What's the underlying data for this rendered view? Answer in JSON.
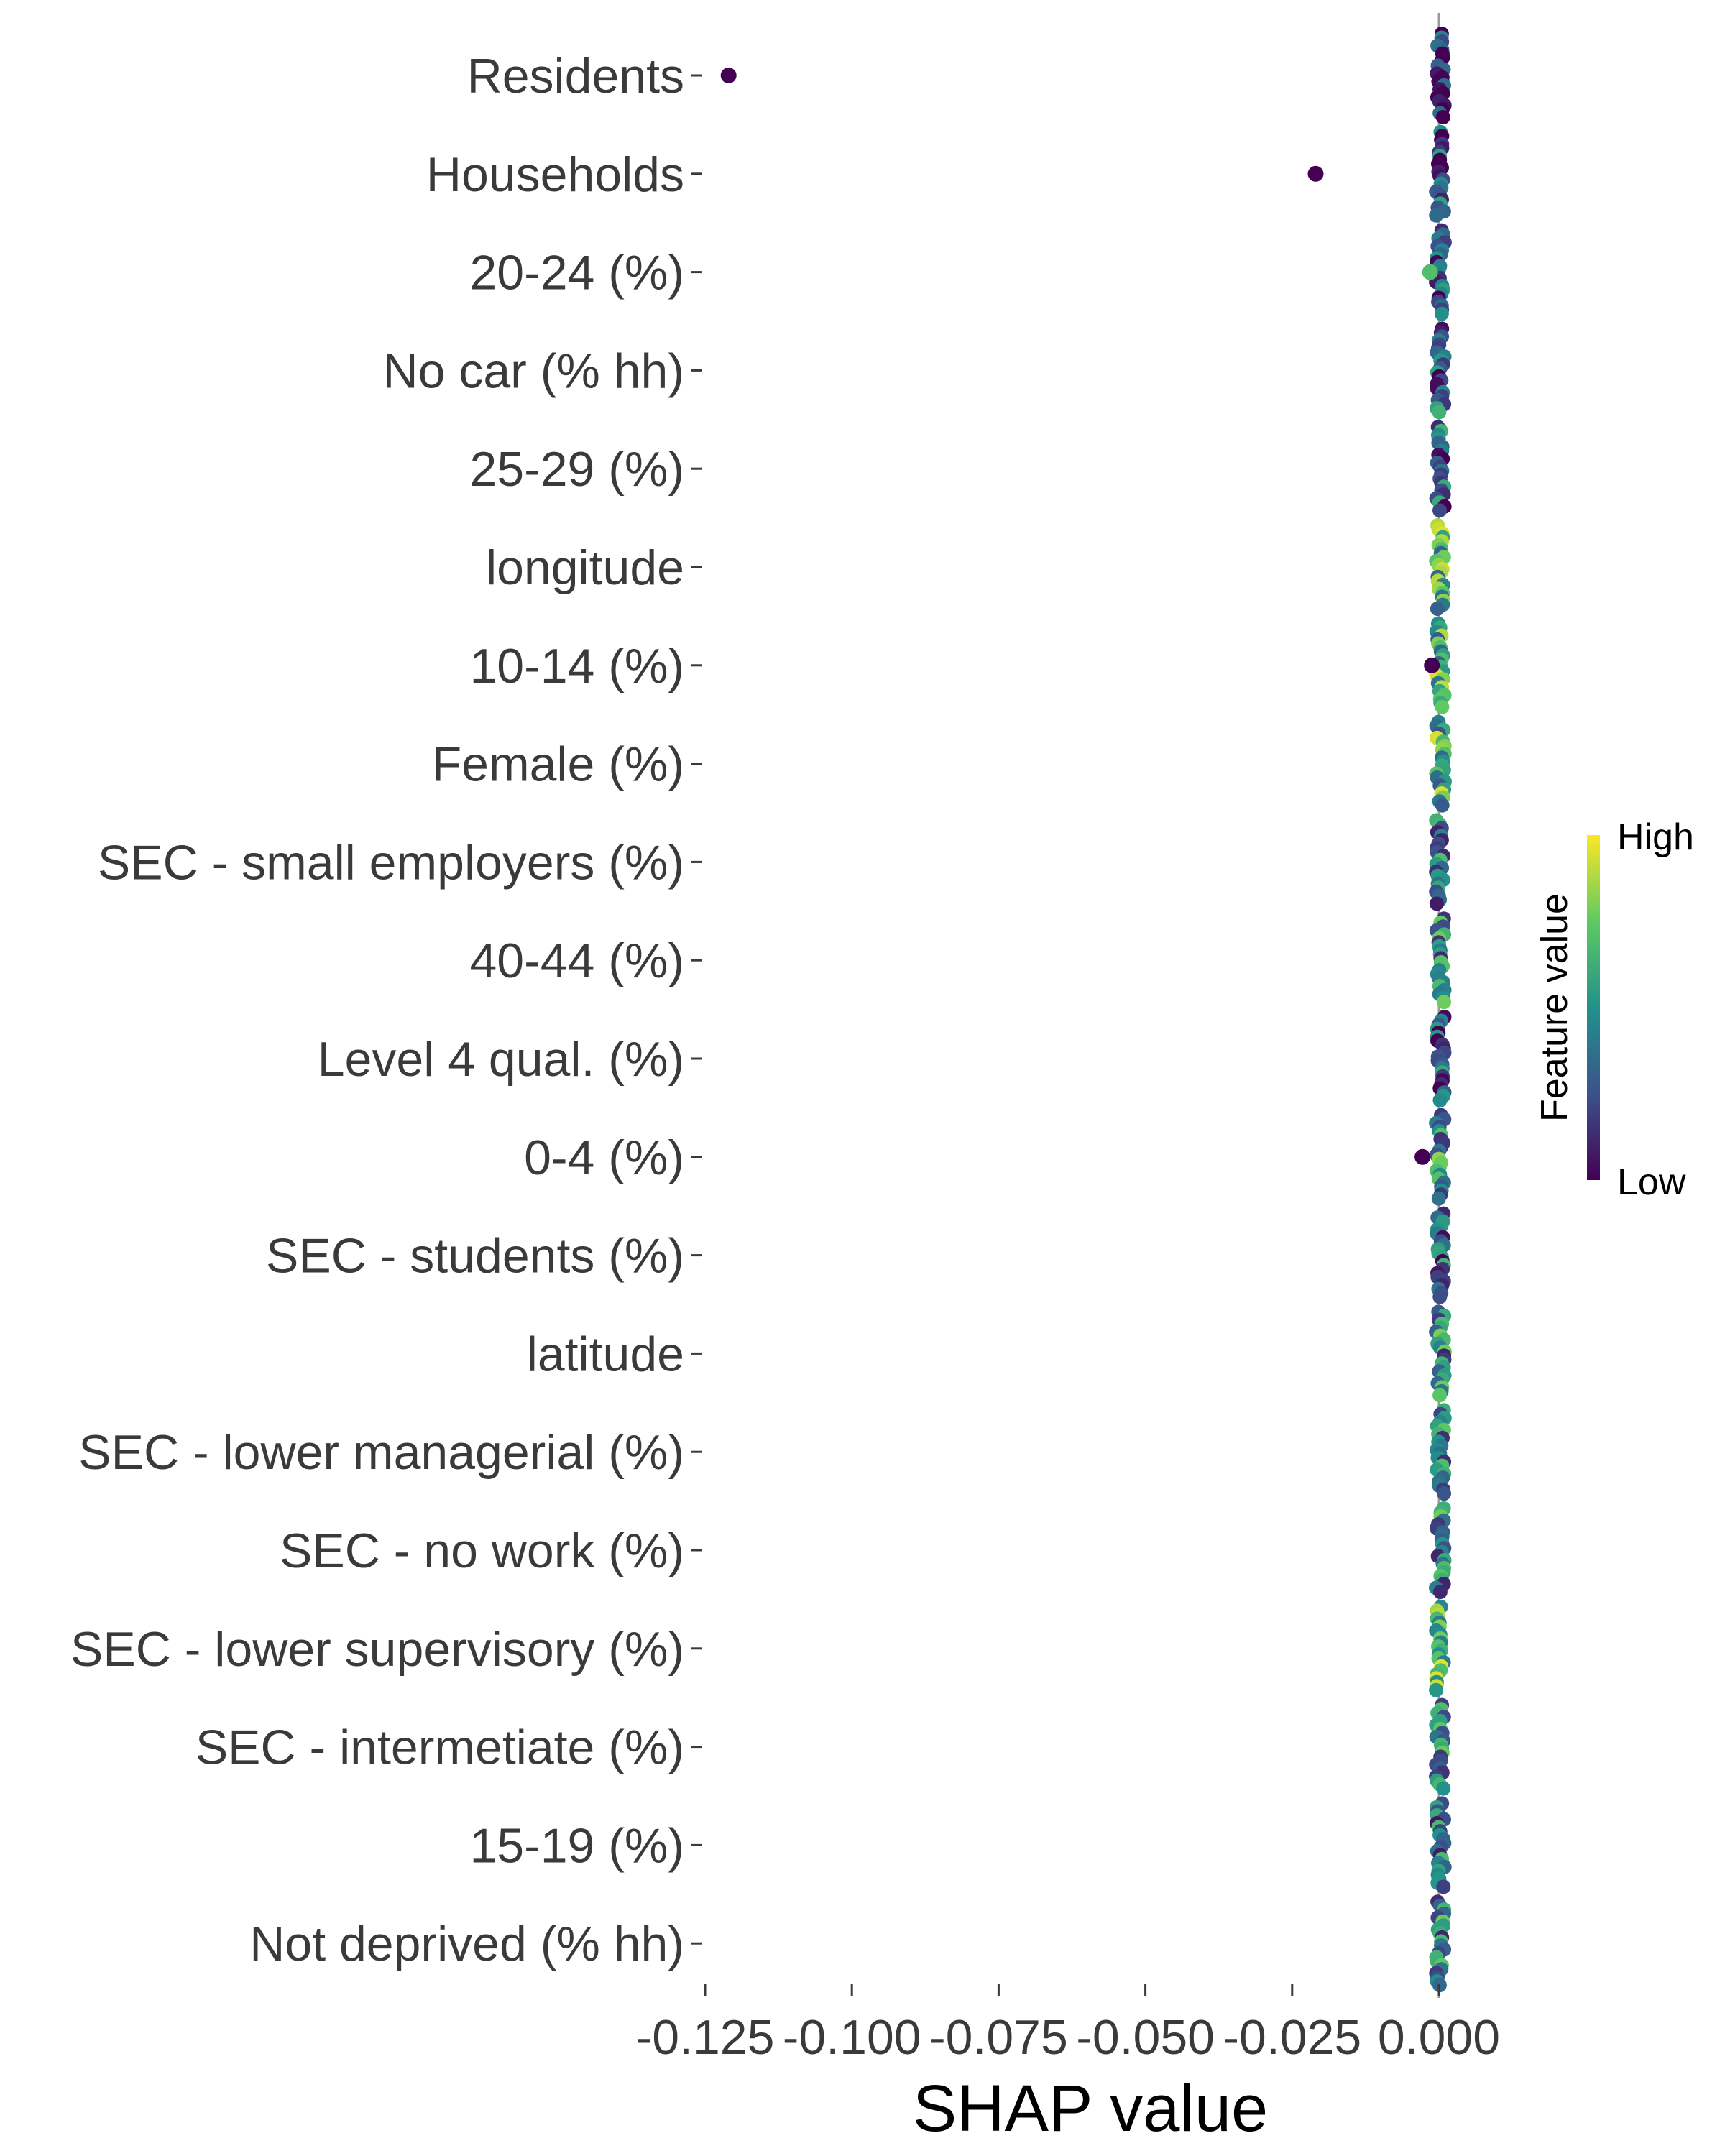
{
  "chart_data": {
    "type": "scatter",
    "subtype": "shap-beeswarm",
    "title": "",
    "xlabel": "SHAP value",
    "ylabel": "",
    "xlim": [
      -0.1255,
      0.001
    ],
    "grid": false,
    "xticks": [
      {
        "value": -0.125,
        "label": "-0.125"
      },
      {
        "value": -0.1,
        "label": "-0.100"
      },
      {
        "value": -0.075,
        "label": "-0.075"
      },
      {
        "value": -0.05,
        "label": "-0.050"
      },
      {
        "value": -0.025,
        "label": "-0.025"
      },
      {
        "value": 0.0,
        "label": "0.000"
      }
    ],
    "features": [
      {
        "name": "Residents",
        "outliers": [
          {
            "shap": -0.121,
            "fv": 0.0
          }
        ]
      },
      {
        "name": "Households",
        "outliers": [
          {
            "shap": -0.021,
            "fv": 0.0
          }
        ]
      },
      {
        "name": "20-24 (%)",
        "outliers": [
          {
            "shap": -0.0015,
            "fv": 0.7
          }
        ]
      },
      {
        "name": "No car (% hh)",
        "outliers": []
      },
      {
        "name": "25-29 (%)",
        "outliers": []
      },
      {
        "name": "longitude",
        "outliers": []
      },
      {
        "name": "10-14 (%)",
        "outliers": [
          {
            "shap": -0.0012,
            "fv": 0.0
          }
        ]
      },
      {
        "name": "Female (%)",
        "outliers": []
      },
      {
        "name": "SEC - small employers (%)",
        "outliers": []
      },
      {
        "name": "40-44 (%)",
        "outliers": []
      },
      {
        "name": "Level 4 qual. (%)",
        "outliers": []
      },
      {
        "name": "0-4 (%)",
        "outliers": [
          {
            "shap": -0.0028,
            "fv": 0.0
          }
        ]
      },
      {
        "name": "SEC - students (%)",
        "outliers": []
      },
      {
        "name": "latitude",
        "outliers": []
      },
      {
        "name": "SEC - lower managerial (%)",
        "outliers": []
      },
      {
        "name": "SEC - no work (%)",
        "outliers": []
      },
      {
        "name": "SEC - lower supervisory (%)",
        "outliers": []
      },
      {
        "name": "SEC - intermetiate (%)",
        "outliers": []
      },
      {
        "name": "15-19 (%)",
        "outliers": []
      },
      {
        "name": "Not deprived (% hh)",
        "outliers": []
      }
    ],
    "colorbar": {
      "title": "Feature value",
      "high_label": "High",
      "low_label": "Low",
      "colormap": "viridis",
      "colors": [
        "#440154",
        "#3b528b",
        "#21918c",
        "#5ec962",
        "#fde725"
      ]
    }
  }
}
